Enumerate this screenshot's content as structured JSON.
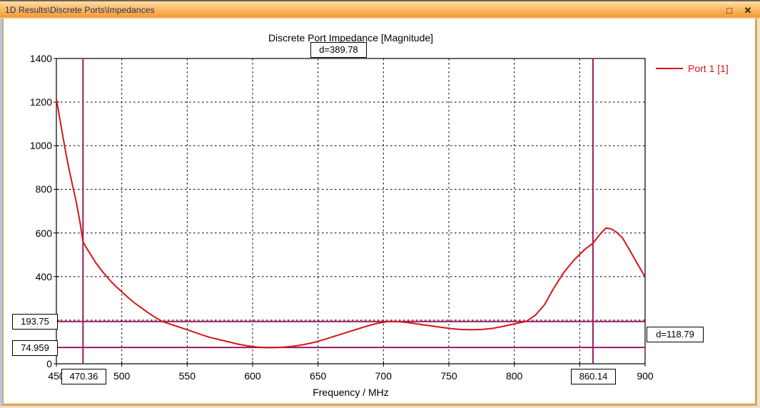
{
  "window": {
    "title": "1D Results\\Discrete Ports\\Impedances",
    "controls": {
      "maximize_glyph": "□",
      "close_glyph": "✕"
    }
  },
  "chart_data": {
    "type": "line",
    "title": "Discrete Port Impedance [Magnitude]",
    "xlabel": "Frequency / MHz",
    "ylabel": "",
    "xlim": [
      450,
      900
    ],
    "ylim": [
      0,
      1400
    ],
    "x_ticks": [
      450,
      500,
      550,
      600,
      650,
      700,
      750,
      800,
      850,
      900
    ],
    "y_ticks": [
      0,
      200,
      400,
      600,
      800,
      1000,
      1200,
      1400
    ],
    "grid": true,
    "grid_style": "dashed",
    "legend_position": "top-right",
    "series": [
      {
        "name": "Port 1 [1]",
        "color": "#d8141b",
        "x": [
          450,
          453,
          456,
          459,
          462,
          465,
          468,
          470.36,
          473,
          476,
          480,
          484,
          488,
          492,
          496,
          500,
          505,
          510,
          515,
          520,
          525,
          531,
          537,
          543,
          549,
          555,
          561,
          568,
          575,
          582,
          589,
          596,
          603,
          610,
          617,
          624,
          631,
          639,
          647,
          655,
          663,
          671,
          679,
          687,
          695,
          704,
          712,
          720,
          728,
          736,
          744,
          752,
          760,
          768,
          776,
          784,
          792,
          800,
          809,
          816,
          823,
          830,
          838,
          846,
          854,
          860.14,
          866,
          870,
          874,
          878,
          883,
          888,
          894,
          900
        ],
        "y": [
          1215,
          1110,
          1008,
          912,
          828,
          748,
          652,
          560,
          531,
          503,
          464,
          432,
          403,
          376,
          352,
          330,
          303,
          278,
          256,
          235,
          215,
          194,
          182,
          170,
          158,
          146,
          133,
          120,
          110,
          100,
          90,
          82,
          77,
          74,
          74.5,
          76.5,
          80,
          88,
          98,
          112,
          127,
          142,
          157,
          172,
          185,
          194,
          193,
          188,
          181,
          174,
          167,
          161,
          157,
          156,
          158,
          163,
          172,
          183,
          194,
          222,
          270,
          345,
          420,
          478,
          525,
          553,
          597,
          622,
          619,
          604,
          575,
          523,
          460,
          398
        ]
      }
    ],
    "markers": {
      "color": "#9c1a62",
      "vertical": [
        {
          "value": 470.36,
          "label": "470.36"
        },
        {
          "value": 860.14,
          "label": "860.14"
        }
      ],
      "horizontal": [
        {
          "value": 193.75,
          "label": "193.75"
        },
        {
          "value": 74.959,
          "label": "74.959"
        }
      ],
      "delta_x_label": "d=389.78",
      "delta_y_label": "d=118.79"
    }
  }
}
